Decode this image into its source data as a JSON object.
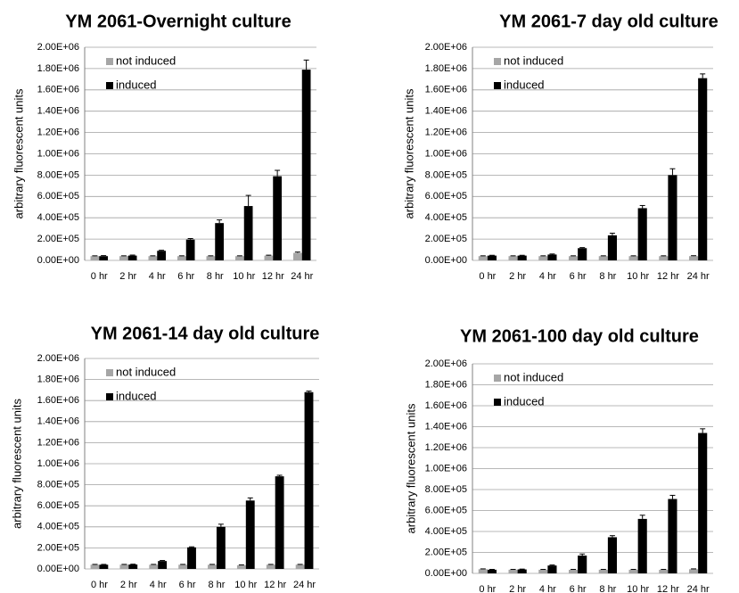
{
  "chart_data": [
    {
      "type": "bar",
      "title": "YM 2061-Overnight culture",
      "ylabel": "arbitrary fluorescent units",
      "categories": [
        "0 hr",
        "2 hr",
        "4 hr",
        "6 hr",
        "8 hr",
        "10 hr",
        "12 hr",
        "24 hr"
      ],
      "series": [
        {
          "name": "not induced",
          "color": "#a6a6a6",
          "values": [
            40000,
            40000,
            40000,
            40000,
            40000,
            40000,
            45000,
            70000
          ],
          "errors": [
            3000,
            3000,
            3000,
            3000,
            3000,
            3000,
            4000,
            8000
          ]
        },
        {
          "name": "induced",
          "color": "#000000",
          "values": [
            40000,
            45000,
            90000,
            195000,
            350000,
            510000,
            790000,
            1790000
          ],
          "errors": [
            5000,
            5000,
            5000,
            10000,
            30000,
            100000,
            55000,
            90000
          ]
        }
      ],
      "ylim": [
        0,
        2000000
      ],
      "yticks": [
        {
          "value": 0,
          "label": "0.00E+00"
        },
        {
          "value": 200000,
          "label": "2.00E+05"
        },
        {
          "value": 400000,
          "label": "4.00E+05"
        },
        {
          "value": 600000,
          "label": "6.00E+05"
        },
        {
          "value": 800000,
          "label": "8.00E+05"
        },
        {
          "value": 1000000,
          "label": "1.00E+06"
        },
        {
          "value": 1200000,
          "label": "1.20E+06"
        },
        {
          "value": 1400000,
          "label": "1.40E+06"
        },
        {
          "value": 1600000,
          "label": "1.60E+06"
        },
        {
          "value": 1800000,
          "label": "1.80E+06"
        },
        {
          "value": 2000000,
          "label": "2.00E+06"
        }
      ],
      "grid": true
    },
    {
      "type": "bar",
      "title": "YM 2061-7 day old culture",
      "ylabel": "arbitrary fluorescent units",
      "categories": [
        "0 hr",
        "2 hr",
        "4 hr",
        "6 hr",
        "8 hr",
        "10 hr",
        "12 hr",
        "24 hr"
      ],
      "series": [
        {
          "name": "not induced",
          "color": "#a6a6a6",
          "values": [
            40000,
            40000,
            40000,
            40000,
            40000,
            40000,
            40000,
            40000
          ],
          "errors": [
            3000,
            3000,
            3000,
            3000,
            3000,
            3000,
            3000,
            4000
          ]
        },
        {
          "name": "induced",
          "color": "#000000",
          "values": [
            45000,
            45000,
            55000,
            115000,
            235000,
            490000,
            800000,
            1710000
          ],
          "errors": [
            3000,
            3000,
            5000,
            5000,
            20000,
            25000,
            60000,
            40000
          ]
        }
      ],
      "ylim": [
        0,
        2000000
      ],
      "yticks": [
        {
          "value": 0,
          "label": "0.00E+00"
        },
        {
          "value": 200000,
          "label": "2.00E+05"
        },
        {
          "value": 400000,
          "label": "4.00E+05"
        },
        {
          "value": 600000,
          "label": "6.00E+05"
        },
        {
          "value": 800000,
          "label": "8.00E+05"
        },
        {
          "value": 1000000,
          "label": "1.00E+06"
        },
        {
          "value": 1200000,
          "label": "1.20E+06"
        },
        {
          "value": 1400000,
          "label": "1.40E+06"
        },
        {
          "value": 1600000,
          "label": "1.60E+06"
        },
        {
          "value": 1800000,
          "label": "1.80E+06"
        },
        {
          "value": 2000000,
          "label": "2.00E+06"
        }
      ],
      "grid": true
    },
    {
      "type": "bar",
      "title": "YM 2061-14 day old culture",
      "ylabel": "arbitrary fluorescent units",
      "categories": [
        "0 hr",
        "2 hr",
        "4 hr",
        "6 hr",
        "8 hr",
        "10 hr",
        "12 hr",
        "24 hr"
      ],
      "series": [
        {
          "name": "not induced",
          "color": "#a6a6a6",
          "values": [
            40000,
            40000,
            40000,
            40000,
            40000,
            35000,
            40000,
            40000
          ],
          "errors": [
            3000,
            3000,
            3000,
            3000,
            3000,
            3000,
            3000,
            3000
          ]
        },
        {
          "name": "induced",
          "color": "#000000",
          "values": [
            40000,
            42000,
            75000,
            205000,
            400000,
            650000,
            880000,
            1680000
          ],
          "errors": [
            3000,
            3000,
            5000,
            5000,
            25000,
            25000,
            10000,
            10000
          ]
        }
      ],
      "ylim": [
        0,
        2000000
      ],
      "yticks": [
        {
          "value": 0,
          "label": "0.00E+00"
        },
        {
          "value": 200000,
          "label": "2.00E+05"
        },
        {
          "value": 400000,
          "label": "4.00E+05"
        },
        {
          "value": 600000,
          "label": "6.00E+05"
        },
        {
          "value": 800000,
          "label": "8.00E+05"
        },
        {
          "value": 1000000,
          "label": "1.00E+06"
        },
        {
          "value": 1200000,
          "label": "1.20E+06"
        },
        {
          "value": 1400000,
          "label": "1.40E+06"
        },
        {
          "value": 1600000,
          "label": "1.60E+06"
        },
        {
          "value": 1800000,
          "label": "1.80E+06"
        },
        {
          "value": 2000000,
          "label": "2.00E+06"
        }
      ],
      "grid": true
    },
    {
      "type": "bar",
      "title": "YM 2061-100 day old culture",
      "ylabel": "arbitrary fluorescent units",
      "categories": [
        "0 hr",
        "2 hr",
        "4 hr",
        "6 hr",
        "8 hr",
        "10 hr",
        "12 hr",
        "24 hr"
      ],
      "series": [
        {
          "name": "not induced",
          "color": "#a6a6a6",
          "values": [
            40000,
            35000,
            35000,
            35000,
            35000,
            35000,
            35000,
            40000
          ],
          "errors": [
            3000,
            3000,
            3000,
            3000,
            3000,
            3000,
            3000,
            3000
          ]
        },
        {
          "name": "induced",
          "color": "#000000",
          "values": [
            35000,
            38000,
            75000,
            170000,
            345000,
            520000,
            710000,
            1340000
          ],
          "errors": [
            3000,
            3000,
            5000,
            15000,
            15000,
            35000,
            35000,
            40000
          ]
        }
      ],
      "ylim": [
        0,
        2000000
      ],
      "yticks": [
        {
          "value": 0,
          "label": "0.00E+00"
        },
        {
          "value": 200000,
          "label": "2.00E+05"
        },
        {
          "value": 400000,
          "label": "4.00E+05"
        },
        {
          "value": 600000,
          "label": "6.00E+05"
        },
        {
          "value": 800000,
          "label": "8.00E+05"
        },
        {
          "value": 1000000,
          "label": "1.00E+06"
        },
        {
          "value": 1200000,
          "label": "1.20E+06"
        },
        {
          "value": 1400000,
          "label": "1.40E+06"
        },
        {
          "value": 1600000,
          "label": "1.60E+06"
        },
        {
          "value": 1800000,
          "label": "1.80E+06"
        },
        {
          "value": 2000000,
          "label": "2.00E+06"
        }
      ],
      "grid": true
    }
  ]
}
